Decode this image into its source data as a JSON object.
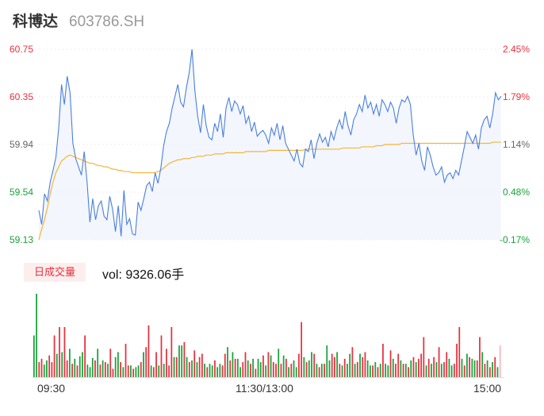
{
  "header": {
    "name": "科博达",
    "code": "603786.SH"
  },
  "volume_panel": {
    "tab_label": "日成交量",
    "vol_label": "vol:",
    "vol_value": "9326.06手"
  },
  "colors": {
    "price_line": "#4a7fe0",
    "avg_line": "#f5b53a",
    "up": "#e8313e",
    "down": "#19a33a",
    "area_fill": "#eef2fb"
  },
  "chart_data": [
    {
      "type": "line",
      "y_ticks_left": [
        "60.75",
        "60.35",
        "59.94",
        "59.54",
        "59.13"
      ],
      "y_ticks_right": [
        "2.45%",
        "1.79%",
        "1.14%",
        "0.48%",
        "-0.17%"
      ],
      "ylim": [
        59.13,
        60.75
      ],
      "x_ticks": [
        "09:30",
        "11:30/13:00",
        "15:00"
      ],
      "series": [
        {
          "values": [
            59.38,
            59.26,
            59.52,
            59.46,
            59.62,
            59.72,
            59.83,
            60.08,
            60.45,
            60.28,
            60.52,
            60.38,
            59.95,
            59.82,
            59.75,
            59.68,
            59.88,
            59.62,
            59.28,
            59.48,
            59.3,
            59.42,
            59.46,
            59.33,
            59.3,
            59.5,
            59.39,
            59.2,
            59.42,
            59.16,
            59.55,
            59.26,
            59.31,
            59.18,
            59.17,
            59.45,
            59.38,
            59.48,
            59.59,
            59.62,
            59.54,
            59.7,
            59.61,
            59.74,
            59.93,
            60.05,
            60.12,
            60.25,
            60.35,
            60.45,
            60.3,
            60.26,
            60.42,
            60.55,
            60.75,
            60.4,
            60.18,
            60.04,
            60.28,
            60.1,
            60.0,
            59.98,
            60.12,
            60.05,
            60.2,
            60.0,
            60.25,
            60.34,
            60.22,
            60.31,
            60.28,
            60.2,
            60.27,
            60.12,
            60.18,
            60.05,
            60.13,
            60.01,
            60.04,
            60.06,
            60.02,
            59.95,
            60.08,
            60.02,
            60.12,
            59.98,
            60.1,
            59.95,
            59.9,
            59.85,
            59.8,
            59.9,
            59.78,
            59.75,
            59.9,
            59.88,
            59.98,
            59.82,
            59.95,
            60.03,
            59.96,
            60.0,
            59.92,
            60.05,
            59.98,
            60.08,
            60.15,
            60.07,
            60.22,
            60.1,
            60.02,
            60.15,
            60.2,
            60.28,
            60.22,
            60.36,
            60.25,
            60.3,
            60.2,
            60.28,
            60.18,
            60.32,
            60.28,
            60.22,
            60.3,
            60.25,
            60.12,
            60.25,
            60.32,
            60.3,
            60.35,
            60.28,
            60.02,
            59.85,
            59.95,
            59.8,
            59.72,
            59.92,
            59.85,
            59.75,
            59.68,
            59.7,
            59.75,
            59.62,
            59.68,
            59.7,
            59.65,
            59.72,
            59.68,
            59.8,
            59.92,
            60.05,
            60.0,
            59.95,
            60.02,
            59.9,
            60.08,
            60.15,
            60.18,
            60.08,
            60.2,
            60.38,
            60.32,
            60.35
          ]
        },
        {
          "values": [
            59.13,
            59.22,
            59.3,
            59.4,
            59.52,
            59.62,
            59.7,
            59.75,
            59.8,
            59.82,
            59.84,
            59.85,
            59.84,
            59.83,
            59.82,
            59.81,
            59.8,
            59.79,
            59.78,
            59.78,
            59.77,
            59.76,
            59.76,
            59.75,
            59.75,
            59.74,
            59.73,
            59.73,
            59.72,
            59.72,
            59.71,
            59.71,
            59.71,
            59.7,
            59.7,
            59.7,
            59.7,
            59.7,
            59.7,
            59.7,
            59.7,
            59.7,
            59.71,
            59.72,
            59.74,
            59.76,
            59.78,
            59.79,
            59.8,
            59.81,
            59.81,
            59.82,
            59.82,
            59.82,
            59.83,
            59.83,
            59.84,
            59.84,
            59.84,
            59.85,
            59.85,
            59.85,
            59.86,
            59.86,
            59.86,
            59.86,
            59.87,
            59.87,
            59.87,
            59.87,
            59.87,
            59.87,
            59.87,
            59.88,
            59.88,
            59.88,
            59.88,
            59.88,
            59.88,
            59.88,
            59.88,
            59.89,
            59.89,
            59.89,
            59.89,
            59.89,
            59.89,
            59.89,
            59.89,
            59.89,
            59.89,
            59.89,
            59.89,
            59.89,
            59.9,
            59.9,
            59.9,
            59.9,
            59.9,
            59.9,
            59.9,
            59.9,
            59.9,
            59.9,
            59.9,
            59.9,
            59.9,
            59.91,
            59.91,
            59.91,
            59.91,
            59.91,
            59.91,
            59.91,
            59.92,
            59.92,
            59.92,
            59.92,
            59.92,
            59.93,
            59.93,
            59.93,
            59.94,
            59.94,
            59.94,
            59.94,
            59.94,
            59.94,
            59.95,
            59.95,
            59.95,
            59.95,
            59.95,
            59.95,
            59.95,
            59.95,
            59.95,
            59.95,
            59.95,
            59.95,
            59.95,
            59.95,
            59.95,
            59.95,
            59.95,
            59.95,
            59.95,
            59.95,
            59.95,
            59.95,
            59.95,
            59.95,
            59.95,
            59.95,
            59.95,
            59.95,
            59.95,
            59.95,
            59.95,
            59.95,
            59.96,
            59.96,
            59.96,
            59.96
          ]
        }
      ]
    },
    {
      "type": "bar",
      "series": [
        {
          "values": [
            50,
            100,
            18,
            22,
            15,
            20,
            26,
            18,
            50,
            28,
            60,
            30,
            60,
            20,
            34,
            16,
            22,
            14,
            25,
            30,
            50,
            15,
            12,
            23,
            20,
            34,
            15,
            20,
            18,
            16,
            34,
            10,
            24,
            30,
            18,
            12,
            40,
            14,
            14,
            10,
            12,
            14,
            18,
            30,
            36,
            62,
            14,
            12,
            30,
            14,
            50,
            16,
            34,
            14,
            60,
            24,
            24,
            38,
            38,
            42,
            24,
            18,
            20,
            32,
            18,
            24,
            28,
            16,
            12,
            16,
            14,
            20,
            12,
            16,
            14,
            28,
            36,
            20,
            30,
            22,
            22,
            12,
            18,
            30,
            20,
            16,
            22,
            10,
            22,
            18,
            26,
            14,
            30,
            26,
            18,
            16,
            34,
            16,
            26,
            22,
            12,
            16,
            20,
            12,
            28,
            66,
            24,
            18,
            20,
            30,
            28,
            16,
            12,
            16,
            16,
            38,
            20,
            28,
            24,
            30,
            16,
            14,
            22,
            16,
            28,
            36,
            16,
            18,
            28,
            24,
            30,
            20,
            14,
            14,
            18,
            12,
            16,
            40,
            16,
            14,
            32,
            22,
            16,
            28,
            20,
            16,
            16,
            12,
            20,
            24,
            18,
            22,
            28,
            48,
            14,
            22,
            16,
            24,
            18,
            36,
            16,
            18,
            30,
            22,
            14,
            16,
            40,
            60,
            22,
            14,
            28,
            24,
            22,
            20,
            20,
            48,
            30,
            16,
            20,
            12,
            18,
            24,
            12,
            38
          ]
        }
      ],
      "up_colors": [
        0,
        0,
        1,
        1,
        0,
        0,
        1,
        1,
        1,
        0,
        1,
        0,
        1,
        1,
        0,
        1,
        0,
        1,
        0,
        0,
        1,
        0,
        0,
        0,
        1,
        0,
        1,
        0,
        1,
        0,
        1,
        1,
        0,
        0,
        1,
        0,
        1,
        1,
        0,
        1,
        0,
        0,
        1,
        0,
        1,
        1,
        0,
        1,
        1,
        0,
        1,
        0,
        1,
        1,
        1,
        0,
        1,
        0,
        0,
        1,
        0,
        1,
        0,
        1,
        0,
        1,
        1,
        0,
        1,
        0,
        0,
        1,
        0,
        0,
        1,
        1,
        0,
        1,
        0,
        1,
        0,
        0,
        1,
        1,
        0,
        1,
        0,
        1,
        0,
        0,
        1,
        0,
        1,
        0,
        1,
        1,
        0,
        1,
        0,
        1,
        0,
        1,
        0,
        0,
        1,
        1,
        0,
        1,
        0,
        0,
        1,
        0,
        1,
        0,
        1,
        0,
        0,
        1,
        1,
        0,
        1,
        0,
        1,
        0,
        0,
        1,
        0,
        1,
        0,
        1,
        1,
        0,
        0,
        1,
        0,
        1,
        0,
        1,
        0,
        0,
        1,
        0,
        1,
        1,
        0,
        1,
        0,
        1,
        0,
        1,
        0,
        1,
        1,
        1,
        0,
        1,
        0,
        1,
        0,
        1,
        0,
        1,
        1,
        0,
        0,
        1,
        1,
        1,
        0,
        1,
        0,
        1,
        0,
        0,
        1,
        1,
        0,
        1,
        0,
        1,
        0,
        1,
        0,
        1
      ]
    }
  ]
}
